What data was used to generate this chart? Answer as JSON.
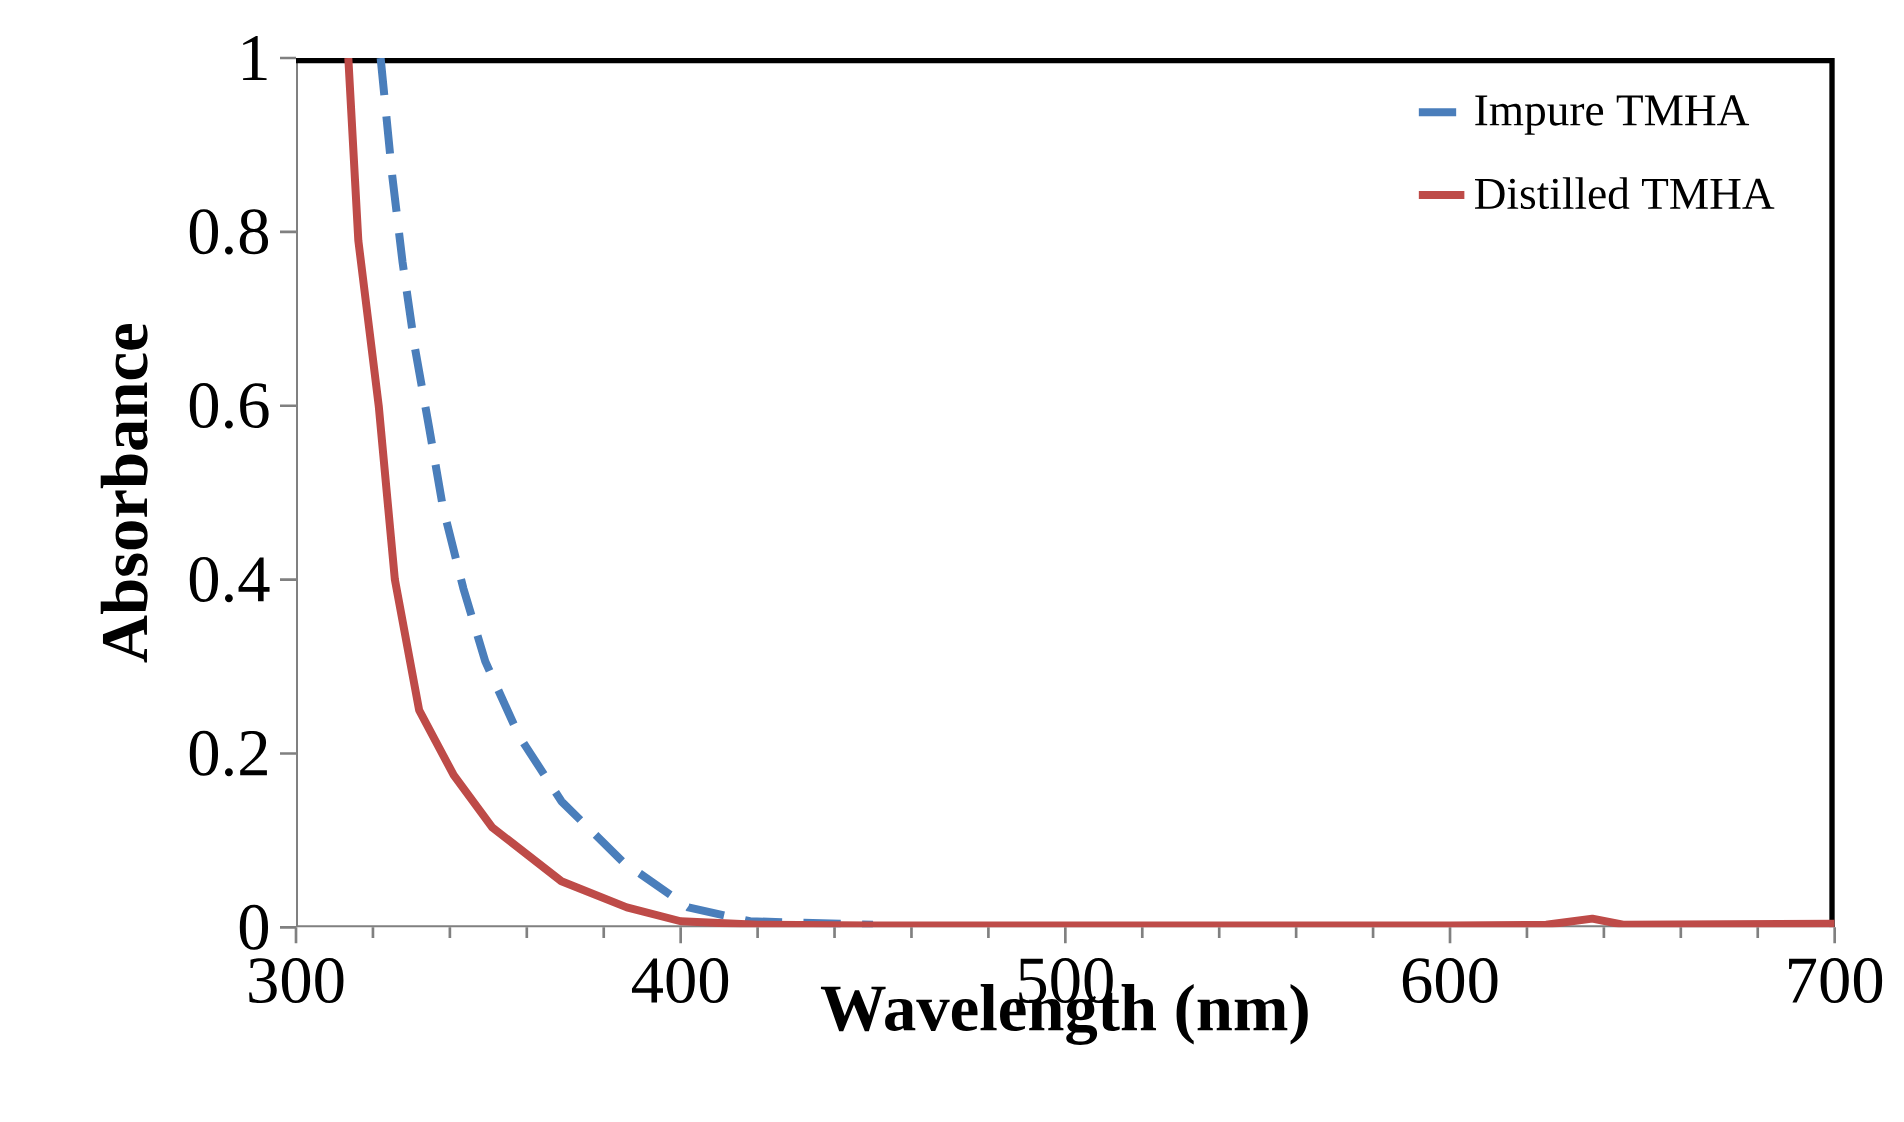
{
  "chart_data": {
    "type": "line",
    "xlabel": "Wavelength (nm)",
    "ylabel": "Absorbance",
    "xlim": [
      300,
      700
    ],
    "xticks": [
      300,
      400,
      500,
      600,
      700
    ],
    "ylim": [
      0,
      1
    ],
    "yticks": [
      0,
      0.2,
      0.4,
      0.6,
      0.8,
      1
    ],
    "legend": "top right",
    "grid": false,
    "series": [
      {
        "name": "Impure TMHA",
        "color": "#4a7ebb",
        "line_style": "dashed",
        "x": [
          322,
          325,
          327.7,
          330.9,
          334.6,
          338.2,
          343.5,
          349.2,
          358,
          369,
          384.8,
          402,
          418,
          450
        ],
        "values": [
          1,
          0.865,
          0.765,
          0.667,
          0.575,
          0.483,
          0.39,
          0.306,
          0.22,
          0.145,
          0.076,
          0.023,
          0.007,
          0.003
        ]
      },
      {
        "name": "Distilled TMHA",
        "color": "#be4b48",
        "line_style": "solid",
        "x": [
          313.6,
          316.2,
          321.5,
          325.7,
          332,
          341,
          351,
          369,
          386,
          400,
          420,
          450,
          500,
          550,
          600,
          625,
          637,
          645,
          700
        ],
        "values": [
          1,
          0.79,
          0.6,
          0.4,
          0.25,
          0.175,
          0.115,
          0.053,
          0.023,
          0.007,
          0.003,
          0.002,
          0.002,
          0.002,
          0.002,
          0.003,
          0.01,
          0.003,
          0.004
        ]
      }
    ]
  }
}
